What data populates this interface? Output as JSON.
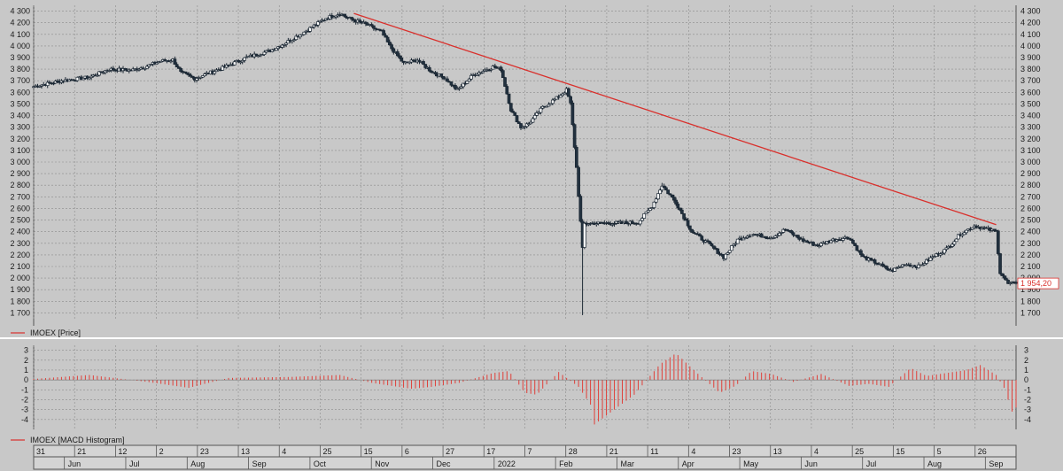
{
  "colors": {
    "background": "#c8c8c8",
    "plot_bg": "#c8c8c8",
    "grid": "#8c8c8c",
    "candle_up": "#ffffff",
    "candle_down": "#22313f",
    "candle_line": "#1b2733",
    "trendline": "#d9302c",
    "histogram": "#e0403a",
    "price_tag_bg": "#ffffff",
    "price_tag_text": "#d9302c"
  },
  "price_panel": {
    "legend": "IMOEX [Price]",
    "last_price_label": "1 954,20",
    "y_ticks": [
      "1 700",
      "1 800",
      "1 900",
      "2 000",
      "2 100",
      "2 200",
      "2 300",
      "2 400",
      "2 500",
      "2 600",
      "2 700",
      "2 800",
      "2 900",
      "3 000",
      "3 100",
      "3 200",
      "3 300",
      "3 400",
      "3 500",
      "3 600",
      "3 700",
      "3 800",
      "3 900",
      "4 000",
      "4 100",
      "4 200",
      "4 300"
    ]
  },
  "macd_panel": {
    "legend": "IMOEX [MACD Histogram]",
    "y_ticks": [
      "-4",
      "-3",
      "-2",
      "-1",
      "0",
      "1",
      "2",
      "3"
    ]
  },
  "time_axis": {
    "day_labels": [
      "31",
      "21",
      "12",
      "2",
      "23",
      "13",
      "4",
      "25",
      "15",
      "6",
      "27",
      "17",
      "7",
      "28",
      "21",
      "11",
      "4",
      "23",
      "13",
      "4",
      "25",
      "15",
      "5",
      "26"
    ],
    "month_labels": [
      "Jun",
      "Jul",
      "Aug",
      "Sep",
      "Oct",
      "Nov",
      "Dec",
      "2022",
      "Feb",
      "Mar",
      "Apr",
      "May",
      "Jun",
      "Jul",
      "Aug",
      "Sep"
    ]
  },
  "chart_data": [
    {
      "type": "candlestick",
      "title": "",
      "series": [
        {
          "name": "IMOEX [Price]"
        }
      ],
      "x_range": [
        "2021-05-24",
        "2022-09-30"
      ],
      "ylim": [
        1650,
        4350
      ],
      "y_ticks": [
        1700,
        1800,
        1900,
        2000,
        2100,
        2200,
        2300,
        2400,
        2500,
        2600,
        2700,
        2800,
        2900,
        3000,
        3100,
        3200,
        3300,
        3400,
        3500,
        3600,
        3700,
        3800,
        3900,
        4000,
        4100,
        4200,
        4300
      ],
      "grid": true,
      "path_points": [
        [
          "2021-05-24",
          3650
        ],
        [
          "2021-06-07",
          3700
        ],
        [
          "2021-06-21",
          3730
        ],
        [
          "2021-07-01",
          3800
        ],
        [
          "2021-07-12",
          3790
        ],
        [
          "2021-07-19",
          3820
        ],
        [
          "2021-07-27",
          3870
        ],
        [
          "2021-08-02",
          3880
        ],
        [
          "2021-08-06",
          3770
        ],
        [
          "2021-08-13",
          3720
        ],
        [
          "2021-08-27",
          3810
        ],
        [
          "2021-09-08",
          3900
        ],
        [
          "2021-09-20",
          3960
        ],
        [
          "2021-09-27",
          4020
        ],
        [
          "2021-10-08",
          4130
        ],
        [
          "2021-10-18",
          4240
        ],
        [
          "2021-10-25",
          4280
        ],
        [
          "2021-10-29",
          4240
        ],
        [
          "2021-11-08",
          4180
        ],
        [
          "2021-11-15",
          4120
        ],
        [
          "2021-11-19",
          4000
        ],
        [
          "2021-11-26",
          3850
        ],
        [
          "2021-12-03",
          3880
        ],
        [
          "2021-12-10",
          3780
        ],
        [
          "2021-12-17",
          3720
        ],
        [
          "2021-12-23",
          3620
        ],
        [
          "2021-12-31",
          3750
        ],
        [
          "2022-01-10",
          3820
        ],
        [
          "2022-01-14",
          3800
        ],
        [
          "2022-01-19",
          3450
        ],
        [
          "2022-01-24",
          3300
        ],
        [
          "2022-01-28",
          3330
        ],
        [
          "2022-02-04",
          3470
        ],
        [
          "2022-02-11",
          3550
        ],
        [
          "2022-02-16",
          3620
        ],
        [
          "2022-02-18",
          3500
        ],
        [
          "2022-02-21",
          2950
        ],
        [
          "2022-02-24",
          2250
        ],
        [
          "2022-02-25",
          2470
        ],
        [
          "2022-03-24",
          2480
        ],
        [
          "2022-03-31",
          2620
        ],
        [
          "2022-04-05",
          2800
        ],
        [
          "2022-04-12",
          2650
        ],
        [
          "2022-04-20",
          2400
        ],
        [
          "2022-04-28",
          2300
        ],
        [
          "2022-05-06",
          2180
        ],
        [
          "2022-05-13",
          2330
        ],
        [
          "2022-05-20",
          2380
        ],
        [
          "2022-05-30",
          2350
        ],
        [
          "2022-06-06",
          2420
        ],
        [
          "2022-06-14",
          2330
        ],
        [
          "2022-06-22",
          2280
        ],
        [
          "2022-06-30",
          2330
        ],
        [
          "2022-07-08",
          2350
        ],
        [
          "2022-07-15",
          2180
        ],
        [
          "2022-07-22",
          2130
        ],
        [
          "2022-07-29",
          2060
        ],
        [
          "2022-08-05",
          2120
        ],
        [
          "2022-08-12",
          2100
        ],
        [
          "2022-08-19",
          2180
        ],
        [
          "2022-08-26",
          2250
        ],
        [
          "2022-09-02",
          2380
        ],
        [
          "2022-09-09",
          2450
        ],
        [
          "2022-09-16",
          2420
        ],
        [
          "2022-09-20",
          2400
        ],
        [
          "2022-09-22",
          2050
        ],
        [
          "2022-09-26",
          1950
        ],
        [
          "2022-09-30",
          1954.2
        ]
      ],
      "wick_extremes": [
        [
          "2022-02-24",
          1681
        ],
        [
          "2021-10-25",
          4292
        ],
        [
          "2022-04-05",
          2820
        ]
      ],
      "trendline": {
        "start": [
          "2021-11-01",
          4280
        ],
        "end": [
          "2022-09-20",
          2460
        ]
      },
      "flat_line": {
        "start": [
          "2022-02-25",
          2470
        ],
        "end": [
          "2022-03-24",
          2470
        ]
      },
      "last_value": 1954.2
    },
    {
      "type": "bar",
      "title": "",
      "series": [
        {
          "name": "IMOEX [MACD Histogram]"
        }
      ],
      "ylim": [
        -5,
        3.5
      ],
      "y_ticks": [
        -4,
        -3,
        -2,
        -1,
        0,
        1,
        2,
        3
      ],
      "grid": true,
      "key_values": [
        [
          "2021-05-24",
          0.1
        ],
        [
          "2021-06-21",
          0.5
        ],
        [
          "2021-07-20",
          -0.2
        ],
        [
          "2021-08-10",
          -0.8
        ],
        [
          "2021-08-30",
          0.2
        ],
        [
          "2021-09-30",
          0.3
        ],
        [
          "2021-10-25",
          0.5
        ],
        [
          "2021-11-10",
          -0.3
        ],
        [
          "2021-11-30",
          -0.9
        ],
        [
          "2021-12-10",
          -0.7
        ],
        [
          "2021-12-24",
          -0.3
        ],
        [
          "2022-01-10",
          0.7
        ],
        [
          "2022-01-18",
          0.9
        ],
        [
          "2022-01-26",
          -1.3
        ],
        [
          "2022-02-01",
          -1.5
        ],
        [
          "2022-02-12",
          0.8
        ],
        [
          "2022-02-22",
          -0.7
        ],
        [
          "2022-02-28",
          -2.5
        ],
        [
          "2022-03-02",
          -4.5
        ],
        [
          "2022-03-22",
          -1.5
        ],
        [
          "2022-04-04",
          1.6
        ],
        [
          "2022-04-12",
          2.7
        ],
        [
          "2022-04-22",
          0.8
        ],
        [
          "2022-05-04",
          -1.3
        ],
        [
          "2022-05-12",
          -0.6
        ],
        [
          "2022-05-20",
          0.9
        ],
        [
          "2022-05-30",
          0.6
        ],
        [
          "2022-06-10",
          -0.2
        ],
        [
          "2022-06-24",
          0.6
        ],
        [
          "2022-07-08",
          -0.6
        ],
        [
          "2022-07-18",
          -0.4
        ],
        [
          "2022-07-28",
          -0.7
        ],
        [
          "2022-08-08",
          1.2
        ],
        [
          "2022-08-16",
          0.4
        ],
        [
          "2022-08-26",
          0.7
        ],
        [
          "2022-09-05",
          1.0
        ],
        [
          "2022-09-12",
          1.5
        ],
        [
          "2022-09-20",
          0.5
        ],
        [
          "2022-09-24",
          -0.8
        ],
        [
          "2022-09-28",
          -3.2
        ],
        [
          "2022-09-30",
          -2.8
        ]
      ]
    }
  ]
}
